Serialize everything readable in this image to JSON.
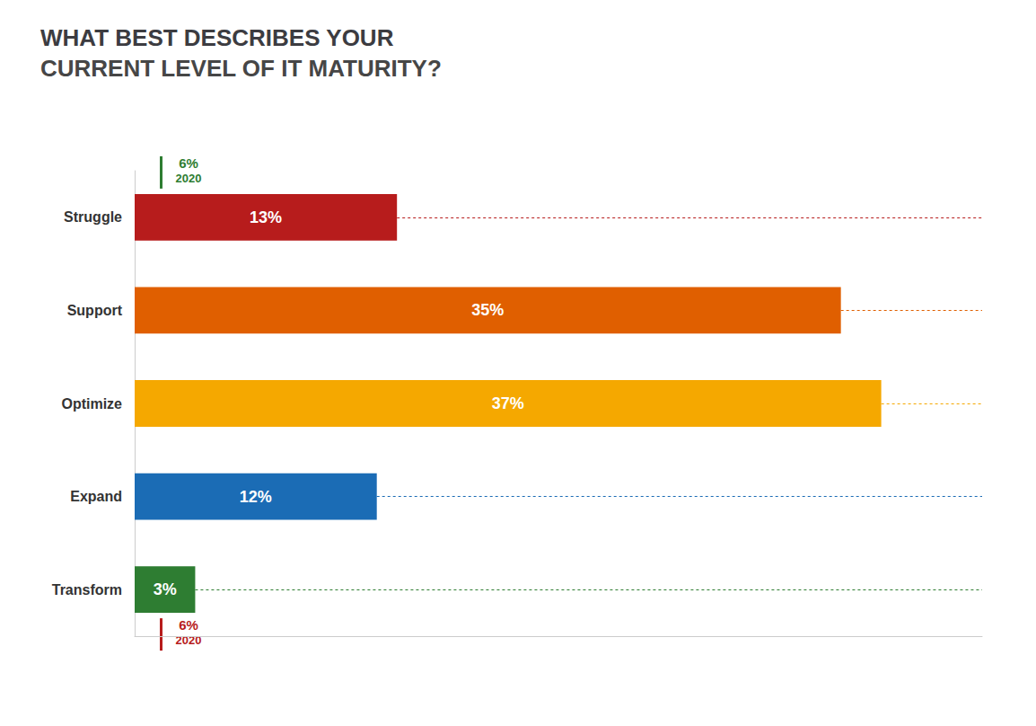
{
  "chart_data": {
    "type": "bar",
    "orientation": "horizontal",
    "title": "WHAT BEST DESCRIBES YOUR",
    "subtitle": "CURRENT LEVEL OF IT MATURITY?",
    "categories": [
      "Transform",
      "Expand",
      "Optimize",
      "Support",
      "Struggle"
    ],
    "values": [
      3,
      12,
      37,
      35,
      13
    ],
    "value_labels": [
      "3%",
      "12%",
      "37%",
      "35%",
      "13%"
    ],
    "data_labels": true,
    "colors": [
      "#2e7d32",
      "#1b6cb5",
      "#f5a800",
      "#e05f00",
      "#b71c1c"
    ],
    "xlim": [
      0,
      42
    ],
    "tick_labels": "y",
    "grid": false,
    "annotations": [
      {
        "text": "6%",
        "color": "#2e7d32",
        "category": "Struggle"
      },
      {
        "text": "2020",
        "color": "#2e7d32",
        "category": "Struggle"
      },
      {
        "text": "6%",
        "color": "#b71c1c",
        "category": "Transform"
      },
      {
        "text": "2020",
        "color": "#b71c1c",
        "category": "Transform"
      }
    ]
  }
}
